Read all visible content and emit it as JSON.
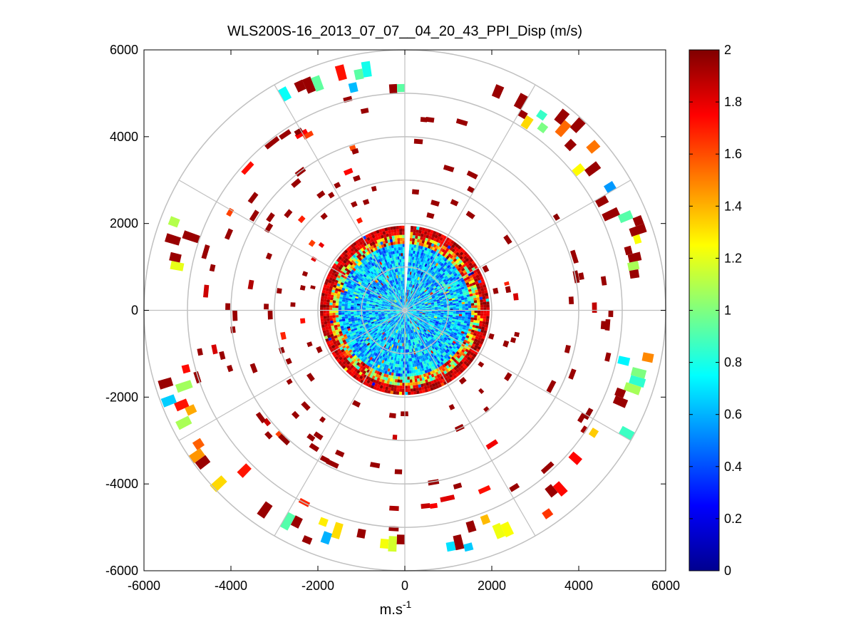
{
  "chart_data": {
    "type": "heatmap",
    "subtype": "polar-ppi",
    "title": "WLS200S-16_2013_07_07__04_20_43_PPI_Disp (m/s)",
    "xlabel_base": "m.s",
    "xlabel_exp": "-1",
    "ylabel": "",
    "xlim": [
      -6000,
      6000
    ],
    "ylim": [
      -6000,
      6000
    ],
    "x_ticks": [
      -6000,
      -4000,
      -2000,
      0,
      2000,
      4000,
      6000
    ],
    "y_ticks": [
      6000,
      4000,
      2000,
      0,
      -2000,
      -4000,
      -6000
    ],
    "x_tick_labels": [
      "-6000",
      "-4000",
      "-2000",
      "0",
      "2000",
      "4000",
      "6000"
    ],
    "y_tick_labels": [
      "6000",
      "4000",
      "2000",
      "0",
      "-2000",
      "-4000",
      "-6000"
    ],
    "range_rings": [
      1000,
      2000,
      3000,
      4000,
      5000,
      6000
    ],
    "spokes_deg": [
      0,
      30,
      60,
      90,
      120,
      150,
      180,
      210,
      240,
      270,
      300,
      330
    ],
    "dense_core_radius": 1900,
    "core_gap_azimuth_deg": [
      0,
      4
    ],
    "outer_band_radius": [
      5000,
      6000
    ],
    "colorbar": {
      "range": [
        0,
        2
      ],
      "ticks": [
        0,
        0.2,
        0.4,
        0.6,
        0.8,
        1,
        1.2,
        1.4,
        1.6,
        1.8,
        2
      ],
      "tick_labels": [
        "0",
        "0.2",
        "0.4",
        "0.6",
        "0.8",
        "1",
        "1.2",
        "1.4",
        "1.6",
        "1.8",
        "2"
      ],
      "colormap": "jet"
    }
  }
}
